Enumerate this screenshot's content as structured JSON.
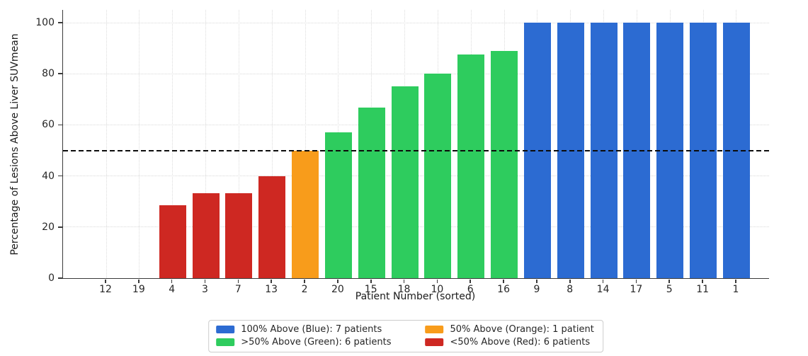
{
  "chart_data": {
    "type": "bar",
    "title": "",
    "xlabel": "Patient Number (sorted)",
    "ylabel": "Percentage of Lesions Above Liver SUVmean",
    "categories": [
      "12",
      "19",
      "4",
      "3",
      "7",
      "13",
      "2",
      "20",
      "15",
      "18",
      "10",
      "6",
      "16",
      "9",
      "8",
      "14",
      "17",
      "5",
      "11",
      "1"
    ],
    "values": [
      0,
      0,
      28.6,
      33.3,
      33.3,
      40,
      50,
      57.1,
      66.7,
      75,
      80,
      87.5,
      88.9,
      100,
      100,
      100,
      100,
      100,
      100,
      100
    ],
    "groups": [
      "red",
      "red",
      "red",
      "red",
      "red",
      "red",
      "orange",
      "green",
      "green",
      "green",
      "green",
      "green",
      "green",
      "blue",
      "blue",
      "blue",
      "blue",
      "blue",
      "blue",
      "blue"
    ],
    "colors": {
      "blue": "#2c6bd2",
      "green": "#2ecc5e",
      "orange": "#f89c1b",
      "red": "#ce2822"
    },
    "yticks": [
      0,
      20,
      40,
      60,
      80,
      100
    ],
    "ylim": [
      0,
      105
    ],
    "grid": true,
    "threshold_line": {
      "value": 50,
      "style": "dashed",
      "color": "#0c0c0c"
    },
    "legend": {
      "position": "bottom-center",
      "items": [
        {
          "color_key": "blue",
          "label": "100% Above (Blue): 7 patients"
        },
        {
          "color_key": "green",
          "label": ">50% Above (Green): 6 patients"
        },
        {
          "color_key": "orange",
          "label": "50% Above (Orange): 1 patient"
        },
        {
          "color_key": "red",
          "label": "<50% Above (Red): 6 patients"
        }
      ]
    }
  }
}
